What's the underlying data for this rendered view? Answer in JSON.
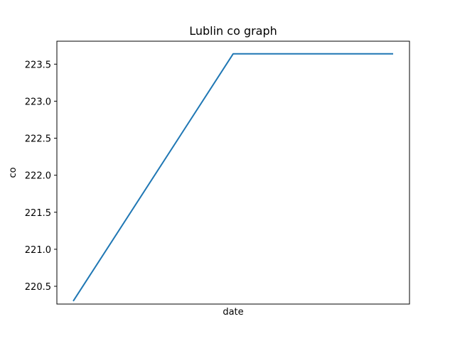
{
  "chart_data": {
    "type": "line",
    "title": "Lublin co graph",
    "xlabel": "date",
    "ylabel": "co",
    "x_ticks_shown": false,
    "grid": false,
    "legend": "none",
    "ylim": [
      220.26,
      223.81
    ],
    "y_ticks": [
      "220.5",
      "221.0",
      "221.5",
      "222.0",
      "222.5",
      "223.0",
      "223.5"
    ],
    "series": [
      {
        "values": [
          220.3,
          223.64,
          223.64
        ],
        "color": "#1f77b4"
      }
    ]
  }
}
